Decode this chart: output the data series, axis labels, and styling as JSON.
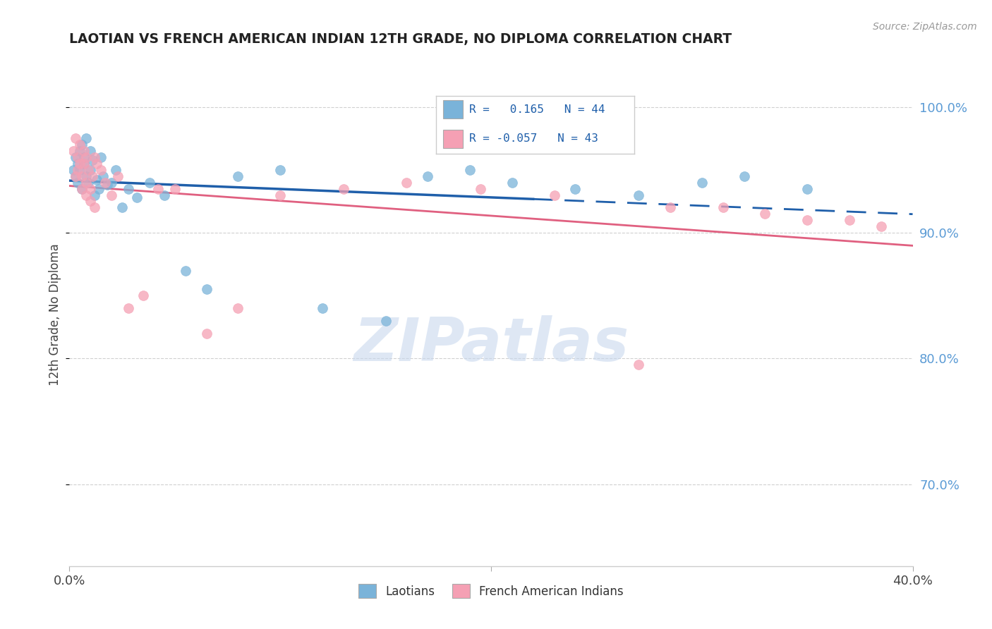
{
  "title": "LAOTIAN VS FRENCH AMERICAN INDIAN 12TH GRADE, NO DIPLOMA CORRELATION CHART",
  "source": "Source: ZipAtlas.com",
  "ylabel": "12th Grade, No Diploma",
  "xlim": [
    0.0,
    0.4
  ],
  "ylim": [
    0.635,
    1.035
  ],
  "r_laotian": 0.165,
  "n_laotian": 44,
  "r_french": -0.057,
  "n_french": 43,
  "laotian_color": "#7ab3d9",
  "french_color": "#f5a0b4",
  "laotian_line_color": "#1f5faa",
  "french_line_color": "#e06080",
  "watermark_text": "ZIPatlas",
  "laotian_x": [
    0.002,
    0.003,
    0.003,
    0.004,
    0.004,
    0.005,
    0.005,
    0.006,
    0.006,
    0.007,
    0.007,
    0.008,
    0.008,
    0.009,
    0.01,
    0.01,
    0.011,
    0.012,
    0.013,
    0.014,
    0.015,
    0.016,
    0.018,
    0.02,
    0.022,
    0.025,
    0.028,
    0.032,
    0.038,
    0.045,
    0.055,
    0.065,
    0.08,
    0.1,
    0.12,
    0.15,
    0.17,
    0.19,
    0.21,
    0.24,
    0.27,
    0.3,
    0.32,
    0.35
  ],
  "laotian_y": [
    0.95,
    0.96,
    0.945,
    0.955,
    0.94,
    0.965,
    0.95,
    0.97,
    0.935,
    0.96,
    0.955,
    0.945,
    0.975,
    0.94,
    0.95,
    0.965,
    0.958,
    0.93,
    0.942,
    0.935,
    0.96,
    0.945,
    0.938,
    0.94,
    0.95,
    0.92,
    0.935,
    0.928,
    0.94,
    0.93,
    0.87,
    0.855,
    0.945,
    0.95,
    0.84,
    0.83,
    0.945,
    0.95,
    0.94,
    0.935,
    0.93,
    0.94,
    0.945,
    0.935
  ],
  "french_x": [
    0.002,
    0.003,
    0.003,
    0.004,
    0.004,
    0.005,
    0.005,
    0.006,
    0.006,
    0.007,
    0.007,
    0.008,
    0.008,
    0.009,
    0.01,
    0.011,
    0.012,
    0.013,
    0.015,
    0.017,
    0.02,
    0.023,
    0.028,
    0.035,
    0.042,
    0.05,
    0.065,
    0.08,
    0.1,
    0.13,
    0.16,
    0.195,
    0.23,
    0.27,
    0.285,
    0.31,
    0.33,
    0.35,
    0.37,
    0.385,
    0.008,
    0.01,
    0.012
  ],
  "french_y": [
    0.965,
    0.945,
    0.975,
    0.95,
    0.96,
    0.97,
    0.955,
    0.945,
    0.935,
    0.965,
    0.955,
    0.94,
    0.96,
    0.95,
    0.935,
    0.945,
    0.96,
    0.955,
    0.95,
    0.94,
    0.93,
    0.945,
    0.84,
    0.85,
    0.935,
    0.935,
    0.82,
    0.84,
    0.93,
    0.935,
    0.94,
    0.935,
    0.93,
    0.795,
    0.92,
    0.92,
    0.915,
    0.91,
    0.91,
    0.905,
    0.93,
    0.925,
    0.92
  ]
}
